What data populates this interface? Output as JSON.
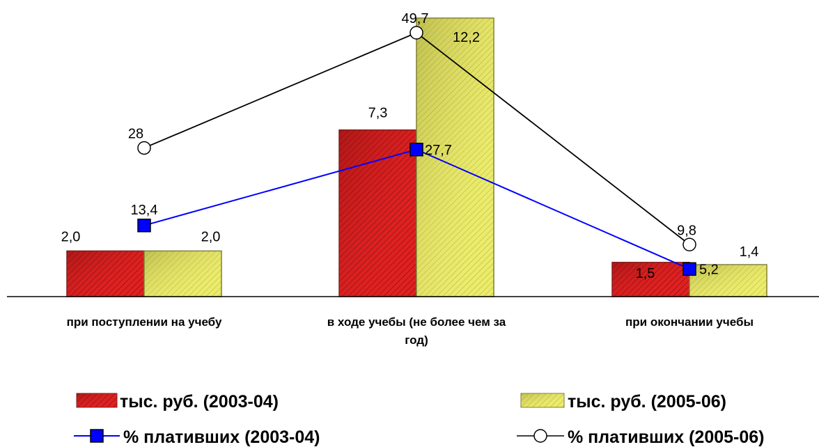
{
  "chart_data": {
    "type": "bar",
    "categories": [
      [
        "при поступлении на учебу"
      ],
      [
        "в ходе учебы (не более чем за",
        "год)"
      ],
      [
        "при окончании учебы"
      ]
    ],
    "bar_series": [
      {
        "name": "тыс. руб. (2003-04)",
        "values": [
          2.0,
          7.3,
          1.5
        ],
        "labels": [
          "2,0",
          "7,3",
          "1,5"
        ],
        "color": "#cc2222"
      },
      {
        "name": "тыс. руб. (2005-06)",
        "values": [
          2.0,
          12.2,
          1.4
        ],
        "labels": [
          "2,0",
          "12,2",
          "1,4"
        ],
        "color": "#d8d860"
      }
    ],
    "line_series": [
      {
        "name": "% плативших (2003-04)",
        "values": [
          13.4,
          27.7,
          5.2
        ],
        "labels": [
          "13,4",
          "27,7",
          "5,2"
        ],
        "color": "#0000ff",
        "marker": "square"
      },
      {
        "name": "% плативших (2005-06)",
        "values": [
          28,
          49.7,
          9.8
        ],
        "labels": [
          "28",
          "49,7",
          "9,8"
        ],
        "color": "#000000",
        "marker": "circle"
      }
    ],
    "bar_axis_range": [
      0,
      12.2
    ],
    "line_axis_range": [
      0,
      49.7
    ],
    "grid": false,
    "legend_position": "bottom"
  }
}
